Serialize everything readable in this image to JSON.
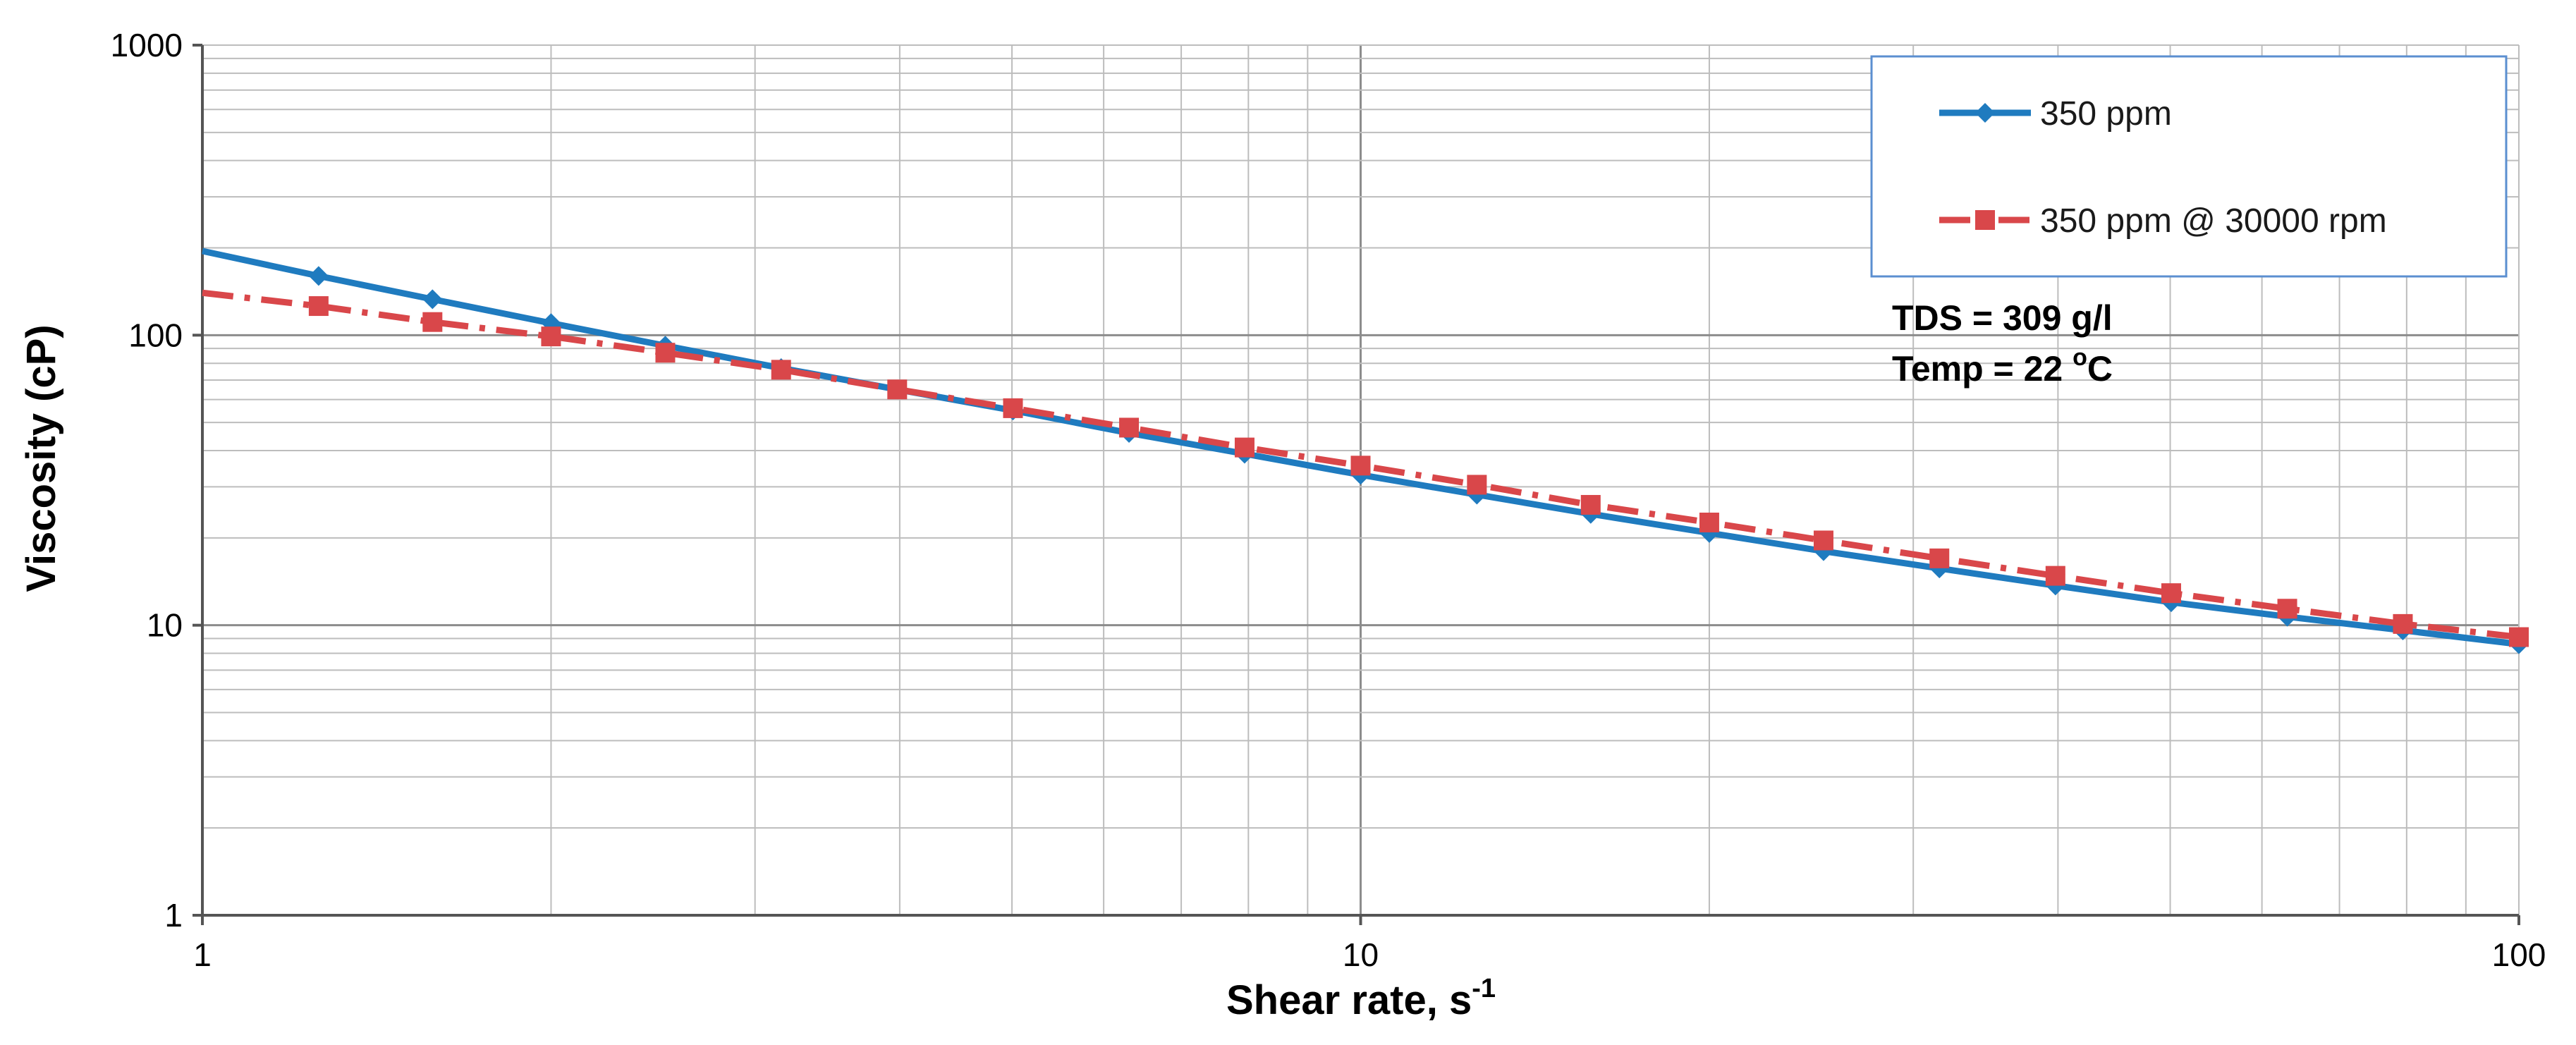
{
  "chart_data": {
    "type": "line",
    "xscale": "log",
    "yscale": "log",
    "xlim": [
      1,
      100
    ],
    "ylim": [
      1,
      1000
    ],
    "grid": true,
    "legend_position": "top-right",
    "xlabel": "Shear rate, s",
    "xlabel_sup": "-1",
    "ylabel": "Viscosity (cP)",
    "x_ticks": [
      {
        "value": 1,
        "label": "1"
      },
      {
        "value": 10,
        "label": "10"
      },
      {
        "value": 100,
        "label": "100"
      }
    ],
    "y_ticks": [
      {
        "value": 1,
        "label": "1"
      },
      {
        "value": 10,
        "label": "10"
      },
      {
        "value": 100,
        "label": "100"
      },
      {
        "value": 1000,
        "label": "1000"
      }
    ],
    "annotations": [
      {
        "text": "TDS = 309 g/l"
      },
      {
        "text": "Temp = 22 ",
        "sup": "o",
        "after": "C"
      }
    ],
    "series": [
      {
        "name": "350 ppm",
        "color": "#1f7bbf",
        "style": "solid",
        "marker": "diamond",
        "x": [
          1,
          1.26,
          1.58,
          2,
          2.51,
          3.16,
          3.98,
          5.01,
          6.31,
          7.94,
          10,
          12.6,
          15.8,
          20,
          25.1,
          31.6,
          39.8,
          50.1,
          63.1,
          79.4,
          100
        ],
        "y": [
          195,
          160,
          133,
          110,
          92,
          77,
          65,
          55,
          46,
          39,
          33,
          28.2,
          24.2,
          20.8,
          18,
          15.7,
          13.7,
          12,
          10.7,
          9.6,
          8.6
        ],
        "marker_from_index": 1
      },
      {
        "name": "350 ppm @ 30000 rpm",
        "color": "#d9474a",
        "style": "dashdot",
        "marker": "square",
        "x": [
          1,
          1.26,
          1.58,
          2,
          2.51,
          3.16,
          3.98,
          5.01,
          6.31,
          7.94,
          10,
          12.6,
          15.8,
          20,
          25.1,
          31.6,
          39.8,
          50.1,
          63.1,
          79.4,
          100
        ],
        "y": [
          140,
          126,
          111,
          99,
          87,
          76,
          65,
          56,
          48,
          41,
          35.5,
          30.5,
          26,
          22.6,
          19.6,
          17,
          14.8,
          12.9,
          11.4,
          10.1,
          9.1
        ],
        "marker_from_index": 1
      }
    ]
  }
}
